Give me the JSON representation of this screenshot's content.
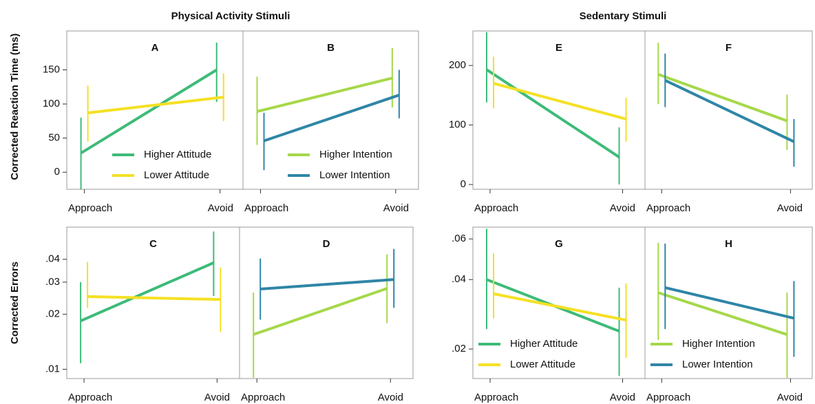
{
  "column_titles": [
    "Physical Activity Stimuli",
    "Sedentary Stimuli"
  ],
  "row_labels": [
    "Corrected Reaction Time (ms)",
    "Corrected Errors"
  ],
  "chart_data": [
    {
      "type": "line",
      "panel": "A",
      "categories": [
        "Approach",
        "Avoid"
      ],
      "ylim": [
        -25,
        207
      ],
      "yticks": [
        0,
        50,
        100,
        150
      ],
      "legend": "lower right",
      "series": [
        {
          "name": "Higher Attitude",
          "color": "#3dbb78",
          "values": [
            28,
            150
          ],
          "lower": [
            -25,
            103
          ],
          "upper": [
            80,
            190
          ]
        },
        {
          "name": "Lower Attitude",
          "color": "#f5e024",
          "values": [
            87,
            110
          ],
          "lower": [
            45,
            75
          ],
          "upper": [
            127,
            145
          ]
        }
      ]
    },
    {
      "type": "line",
      "panel": "B",
      "categories": [
        "Approach",
        "Avoid"
      ],
      "ylim": [
        -25,
        207
      ],
      "legend": "lower right",
      "series": [
        {
          "name": "Higher Intention",
          "color": "#a6d84a",
          "values": [
            89,
            138
          ],
          "lower": [
            40,
            95
          ],
          "upper": [
            140,
            182
          ]
        },
        {
          "name": "Lower Intention",
          "color": "#2f86a6",
          "values": [
            46,
            113
          ],
          "lower": [
            3,
            79
          ],
          "upper": [
            87,
            150
          ]
        }
      ]
    },
    {
      "type": "line",
      "panel": "C",
      "categories": [
        "Approach",
        "Avoid"
      ],
      "ylim": [
        0.0089,
        0.06
      ],
      "log": true,
      "yticks": [
        {
          "value": 0.01,
          "label": ".01"
        },
        {
          "value": 0.02,
          "label": ".02"
        },
        {
          "value": 0.03,
          "label": ".03"
        },
        {
          "value": 0.04,
          "label": ".04"
        }
      ],
      "series": [
        {
          "color": "#3dbb78",
          "values": [
            0.0184,
            0.0383
          ],
          "lower": [
            0.0108,
            0.0252
          ],
          "upper": [
            0.03,
            0.0568
          ]
        },
        {
          "color": "#f5e024",
          "values": [
            0.025,
            0.0241
          ],
          "lower": [
            0.0217,
            0.016
          ],
          "upper": [
            0.0387,
            0.0361
          ]
        }
      ]
    },
    {
      "type": "line",
      "panel": "D",
      "categories": [
        "Approach",
        "Avoid"
      ],
      "ylim": [
        0.0089,
        0.06
      ],
      "log": true,
      "series": [
        {
          "color": "#a6d84a",
          "values": [
            0.0155,
            0.0277
          ],
          "lower": [
            0.009,
            0.0179
          ],
          "upper": [
            0.0263,
            0.0426
          ]
        },
        {
          "color": "#2f86a6",
          "values": [
            0.0275,
            0.031
          ],
          "lower": [
            0.0187,
            0.0217
          ],
          "upper": [
            0.0404,
            0.0456
          ]
        }
      ]
    },
    {
      "type": "line",
      "panel": "E",
      "categories": [
        "Approach",
        "Avoid"
      ],
      "ylim": [
        -8,
        258
      ],
      "yticks": [
        0,
        100,
        200
      ],
      "series": [
        {
          "color": "#3dbb78",
          "values": [
            193,
            46
          ],
          "lower": [
            138,
            0
          ],
          "upper": [
            256,
            96
          ]
        },
        {
          "color": "#f5e024",
          "values": [
            170,
            110
          ],
          "lower": [
            128,
            72
          ],
          "upper": [
            215,
            146
          ]
        }
      ]
    },
    {
      "type": "line",
      "panel": "F",
      "categories": [
        "Approach",
        "Avoid"
      ],
      "ylim": [
        -8,
        258
      ],
      "series": [
        {
          "color": "#a6d84a",
          "values": [
            185,
            107
          ],
          "lower": [
            135,
            58
          ],
          "upper": [
            238,
            151
          ]
        },
        {
          "color": "#2f86a6",
          "values": [
            175,
            72
          ],
          "lower": [
            130,
            30
          ],
          "upper": [
            220,
            110
          ]
        }
      ]
    },
    {
      "type": "line",
      "panel": "G",
      "categories": [
        "Approach",
        "Avoid"
      ],
      "ylim": [
        0.0149,
        0.0675
      ],
      "log": true,
      "legend": "lower left",
      "yticks": [
        {
          "value": 0.02,
          "label": ".02"
        },
        {
          "value": 0.04,
          "label": ".04"
        },
        {
          "value": 0.06,
          "label": ".06"
        }
      ],
      "series": [
        {
          "name": "Higher Attitude",
          "color": "#3dbb78",
          "values": [
            0.04,
            0.0239
          ],
          "lower": [
            0.0244,
            0.0153
          ],
          "upper": [
            0.0664,
            0.0369
          ]
        },
        {
          "name": "Lower Attitude",
          "color": "#f5e024",
          "values": [
            0.0347,
            0.0267
          ],
          "lower": [
            0.0272,
            0.0183
          ],
          "upper": [
            0.052,
            0.0385
          ]
        }
      ]
    },
    {
      "type": "line",
      "panel": "H",
      "categories": [
        "Approach",
        "Avoid"
      ],
      "ylim": [
        0.0149,
        0.0675
      ],
      "log": true,
      "legend": "lower left",
      "series": [
        {
          "name": "Higher Intention",
          "color": "#a6d84a",
          "values": [
            0.0351,
            0.0231
          ],
          "lower": [
            0.0219,
            0.015
          ],
          "upper": [
            0.0577,
            0.0351
          ]
        },
        {
          "name": "Lower Intention",
          "color": "#2f86a6",
          "values": [
            0.0369,
            0.0272
          ],
          "lower": [
            0.0244,
            0.0185
          ],
          "upper": [
            0.0573,
            0.0394
          ]
        }
      ]
    }
  ]
}
